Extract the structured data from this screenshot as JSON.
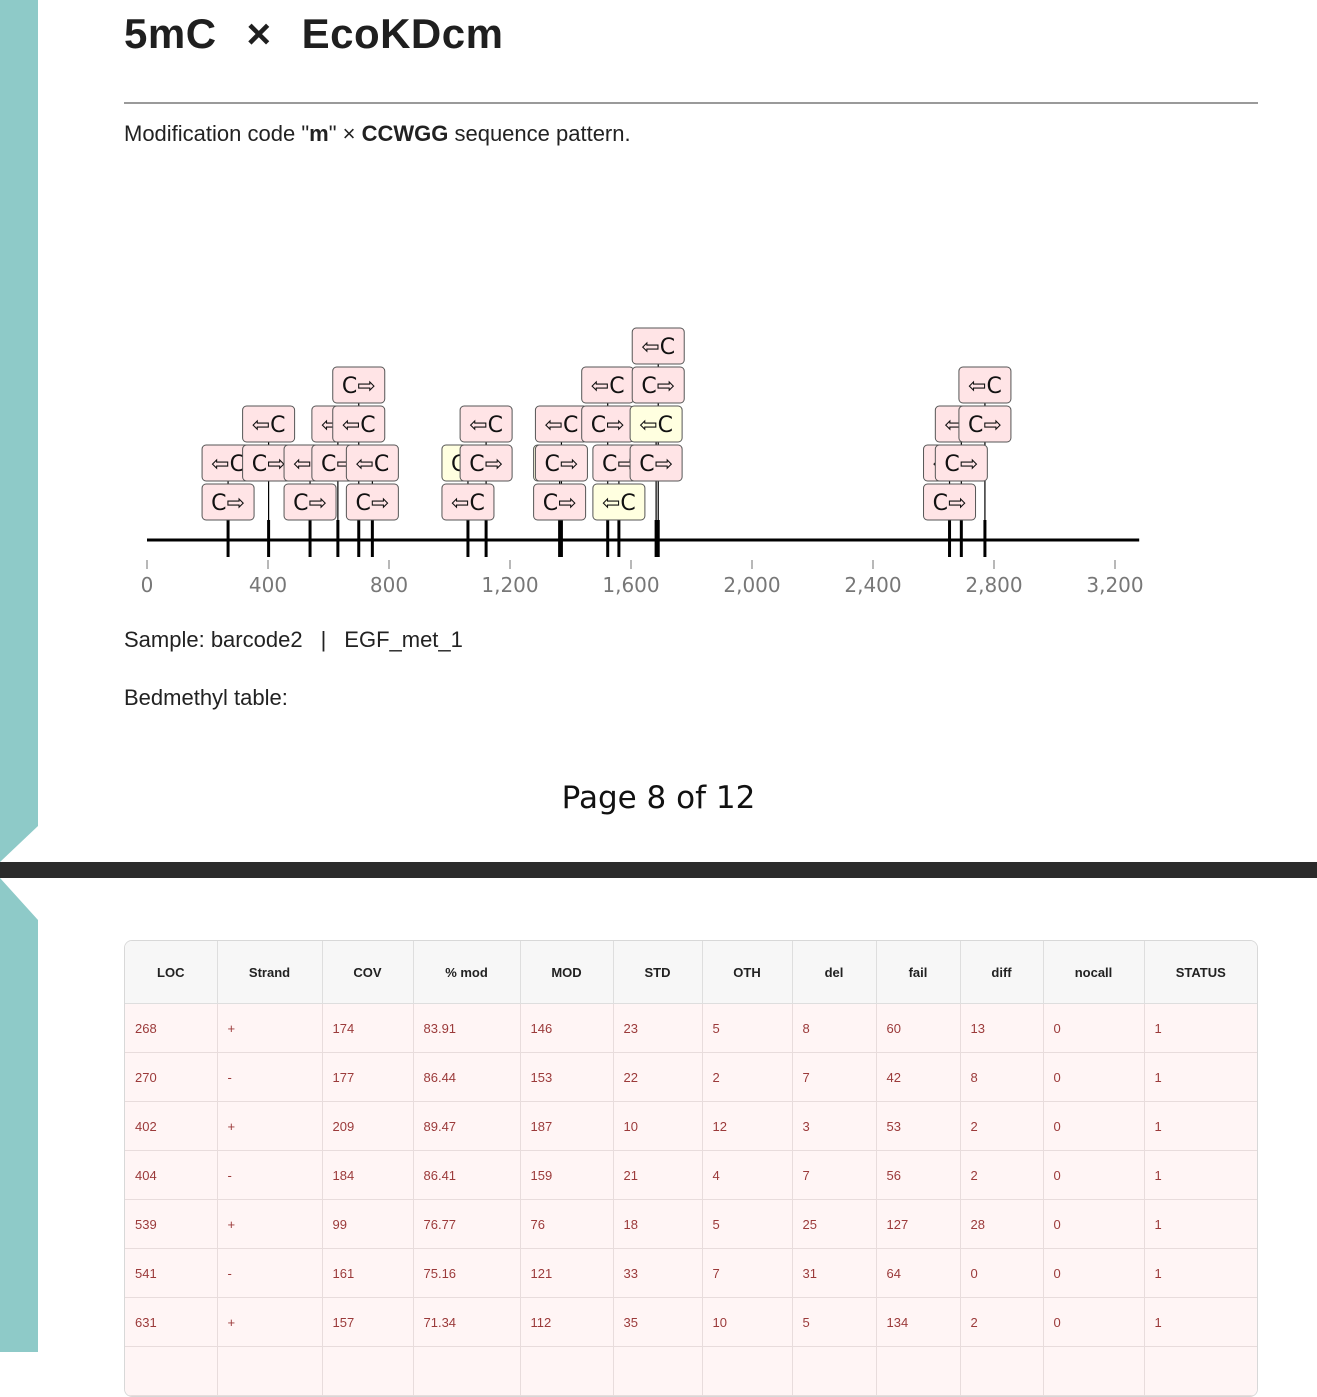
{
  "title": {
    "mod": "5mC",
    "times": "×",
    "enzyme": "EcoKDcm"
  },
  "subtitle": {
    "prefix": "Modification code \"",
    "code": "m",
    "middle": "\" × ",
    "pattern": "CCWGG",
    "suffix": " sequence pattern."
  },
  "sample": {
    "label": "Sample: barcode2",
    "separator": "|",
    "name": "EGF_met_1"
  },
  "bedmethyl_label": "Bedmethyl table:",
  "page_number": "Page 8 of 12",
  "colors": {
    "box_pink": "#ffe4e6",
    "box_yellow": "#ffffe0",
    "strip": "#8ecac8"
  },
  "chart_data": {
    "type": "sequence-track",
    "x_ticks": [
      "0",
      "400",
      "800",
      "1,200",
      "1,600",
      "2,000",
      "2,400",
      "2,800",
      "3,200"
    ],
    "tick_values": [
      0,
      400,
      800,
      1200,
      1600,
      2000,
      2400,
      2800,
      3200
    ],
    "xlim": [
      0,
      3280
    ],
    "sites": [
      {
        "loc": 268,
        "stack": [
          {
            "label": "C⇨",
            "color": "pink"
          },
          {
            "label": "⇦C",
            "color": "pink"
          }
        ]
      },
      {
        "loc": 402,
        "stack": [
          {
            "label": "C⇨",
            "color": "pink"
          },
          {
            "label": "⇦C",
            "color": "pink"
          }
        ]
      },
      {
        "loc": 539,
        "stack": [
          {
            "label": "C⇨",
            "color": "pink"
          },
          {
            "label": "⇦C",
            "color": "pink"
          }
        ]
      },
      {
        "loc": 631,
        "stack": [
          {
            "label": "C⇨",
            "color": "pink"
          },
          {
            "label": "⇦C",
            "color": "pink"
          }
        ]
      },
      {
        "loc": 700,
        "stack": [
          {
            "label": "⇦C",
            "color": "pink"
          },
          {
            "label": "C⇨",
            "color": "pink"
          }
        ]
      },
      {
        "loc": 745,
        "stack": [
          {
            "label": "C⇨",
            "color": "pink"
          },
          {
            "label": "⇦C",
            "color": "pink"
          }
        ]
      },
      {
        "loc": 1061,
        "stack": [
          {
            "label": "⇦C",
            "color": "pink"
          },
          {
            "label": "C⇨",
            "color": "yellow"
          }
        ]
      },
      {
        "loc": 1121,
        "stack": [
          {
            "label": "C⇨",
            "color": "pink"
          },
          {
            "label": "⇦C",
            "color": "pink"
          }
        ]
      },
      {
        "loc": 1364,
        "stack": [
          {
            "label": "C⇨",
            "color": "pink"
          },
          {
            "label": "⇦C",
            "color": "yellow"
          }
        ]
      },
      {
        "loc": 1370,
        "stack": [
          {
            "label": "C⇨",
            "color": "pink"
          },
          {
            "label": "⇦C",
            "color": "pink"
          }
        ]
      },
      {
        "loc": 1523,
        "stack": [
          {
            "label": "C⇨",
            "color": "pink"
          },
          {
            "label": "⇦C",
            "color": "pink"
          }
        ]
      },
      {
        "loc": 1560,
        "stack": [
          {
            "label": "⇦C",
            "color": "yellow"
          },
          {
            "label": "C⇨",
            "color": "pink"
          }
        ]
      },
      {
        "loc": 1683,
        "stack": [
          {
            "label": "C⇨",
            "color": "pink"
          },
          {
            "label": "⇦C",
            "color": "yellow"
          }
        ]
      },
      {
        "loc": 1690,
        "stack": [
          {
            "label": "C⇨",
            "color": "pink"
          },
          {
            "label": "⇦C",
            "color": "pink"
          }
        ]
      },
      {
        "loc": 2653,
        "stack": [
          {
            "label": "C⇨",
            "color": "pink"
          },
          {
            "label": "⇦C",
            "color": "pink"
          }
        ]
      },
      {
        "loc": 2692,
        "stack": [
          {
            "label": "C⇨",
            "color": "pink"
          },
          {
            "label": "⇦C",
            "color": "pink"
          }
        ]
      },
      {
        "loc": 2770,
        "stack": [
          {
            "label": "C⇨",
            "color": "pink"
          },
          {
            "label": "⇦C",
            "color": "pink"
          }
        ]
      }
    ]
  },
  "table": {
    "headers": [
      "LOC",
      "Strand",
      "COV",
      "% mod",
      "MOD",
      "STD",
      "OTH",
      "del",
      "fail",
      "diff",
      "nocall",
      "STATUS"
    ],
    "rows": [
      [
        "268",
        "+",
        "174",
        "83.91",
        "146",
        "23",
        "5",
        "8",
        "60",
        "13",
        "0",
        "1"
      ],
      [
        "270",
        "-",
        "177",
        "86.44",
        "153",
        "22",
        "2",
        "7",
        "42",
        "8",
        "0",
        "1"
      ],
      [
        "402",
        "+",
        "209",
        "89.47",
        "187",
        "10",
        "12",
        "3",
        "53",
        "2",
        "0",
        "1"
      ],
      [
        "404",
        "-",
        "184",
        "86.41",
        "159",
        "21",
        "4",
        "7",
        "56",
        "2",
        "0",
        "1"
      ],
      [
        "539",
        "+",
        "99",
        "76.77",
        "76",
        "18",
        "5",
        "25",
        "127",
        "28",
        "0",
        "1"
      ],
      [
        "541",
        "-",
        "161",
        "75.16",
        "121",
        "33",
        "7",
        "31",
        "64",
        "0",
        "0",
        "1"
      ],
      [
        "631",
        "+",
        "157",
        "71.34",
        "112",
        "35",
        "10",
        "5",
        "134",
        "2",
        "0",
        "1"
      ],
      [
        "",
        "",
        "",
        "",
        "",
        "",
        "",
        "",
        "",
        "",
        "",
        ""
      ]
    ]
  }
}
